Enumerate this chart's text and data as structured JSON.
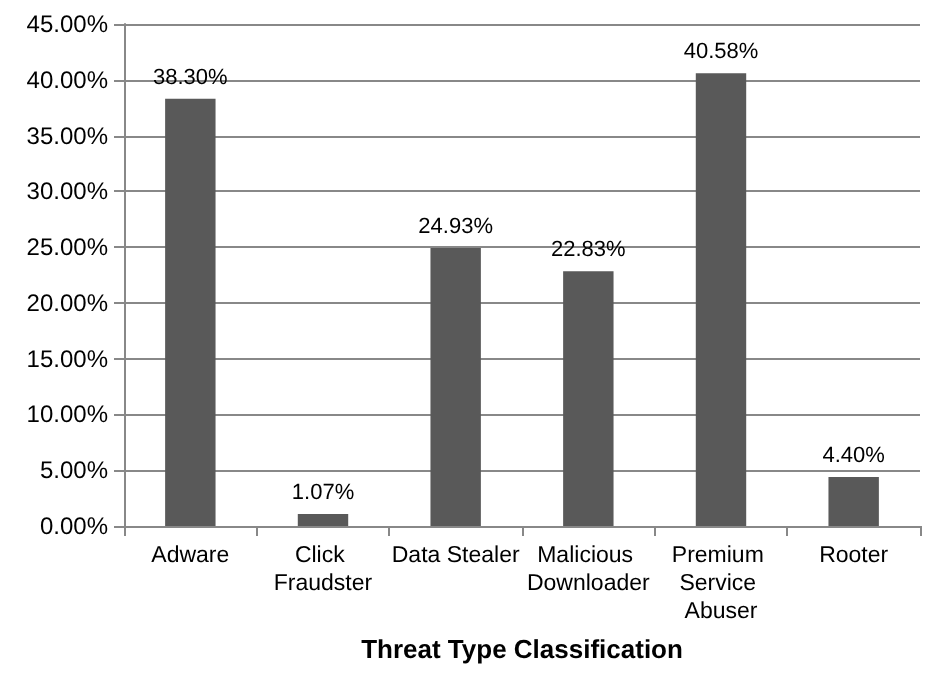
{
  "chart_data": {
    "type": "bar",
    "xlabel": "Threat Type Classification",
    "categories": [
      "Adware",
      "Click Fraudster",
      "Data Stealer",
      "Malicious Downloader",
      "Premium Service Abuser",
      "Rooter"
    ],
    "values": [
      38.3,
      1.07,
      24.93,
      22.83,
      40.58,
      4.4
    ],
    "value_labels": [
      "38.30%",
      "1.07%",
      "24.93%",
      "22.83%",
      "40.58%",
      "4.40%"
    ],
    "color": "#595959",
    "ylim": [
      0,
      45
    ],
    "yticks": [
      {
        "value": 0,
        "label": "0.00%"
      },
      {
        "value": 5,
        "label": "5.00%"
      },
      {
        "value": 10,
        "label": "10.00%"
      },
      {
        "value": 15,
        "label": "15.00%"
      },
      {
        "value": 20,
        "label": "20.00%"
      },
      {
        "value": 25,
        "label": "25.00%"
      },
      {
        "value": 30,
        "label": "30.00%"
      },
      {
        "value": 35,
        "label": "35.00%"
      },
      {
        "value": 40,
        "label": "40.00%"
      },
      {
        "value": 45,
        "label": "45.00%"
      }
    ],
    "grid": "y"
  }
}
